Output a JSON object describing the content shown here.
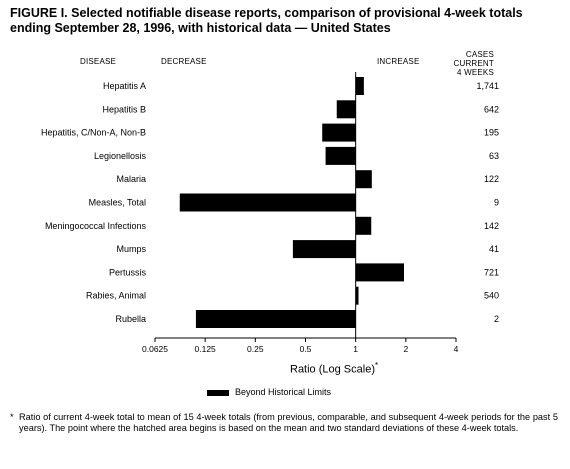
{
  "title": "FIGURE I. Selected notifiable disease reports, comparison of provisional 4-week totals ending September 28, 1996, with historical data — United States",
  "headers": {
    "disease": "DISEASE",
    "decrease": "DECREASE",
    "increase": "INCREASE",
    "cases_line1": "CASES CURRENT",
    "cases_line2": "4 WEEKS"
  },
  "axis": {
    "title": "Ratio (Log Scale)",
    "title_mark": "*"
  },
  "legend": {
    "label": "Beyond Historical Limits"
  },
  "footnote": {
    "marker": "*",
    "text": "Ratio of current 4-week total to mean of 15 4-week totals (from previous, comparable, and subsequent 4-week periods for the past 5 years). The point where the hatched area begins is based on the mean and two standard deviations of these 4-week totals."
  },
  "colors": {
    "bar": "#000000",
    "axis": "#000000",
    "background": "#ffffff"
  },
  "chart_data": {
    "type": "bar",
    "orientation": "horizontal",
    "x_scale": "log2",
    "xlim": [
      0.0625,
      4
    ],
    "baseline": 1,
    "x_ticks": [
      0.0625,
      0.125,
      0.25,
      0.5,
      1,
      2,
      4
    ],
    "x_tick_labels": [
      "0.0625",
      "0.125",
      "0.25",
      "0.5",
      "1",
      "2",
      "4"
    ],
    "categories": [
      "Hepatitis A",
      "Hepatitis B",
      "Hepatitis, C/Non-A, Non-B",
      "Legionellosis",
      "Malaria",
      "Measles, Total",
      "Meningococcal Infections",
      "Mumps",
      "Pertussis",
      "Rabies, Animal",
      "Rubella"
    ],
    "values": [
      1.12,
      0.77,
      0.63,
      0.66,
      1.25,
      0.088,
      1.24,
      0.42,
      1.95,
      1.04,
      0.11
    ],
    "cases": [
      "1,741",
      "642",
      "195",
      "63",
      "122",
      "9",
      "142",
      "41",
      "721",
      "540",
      "2"
    ],
    "xlabel": "Ratio (Log Scale)"
  }
}
